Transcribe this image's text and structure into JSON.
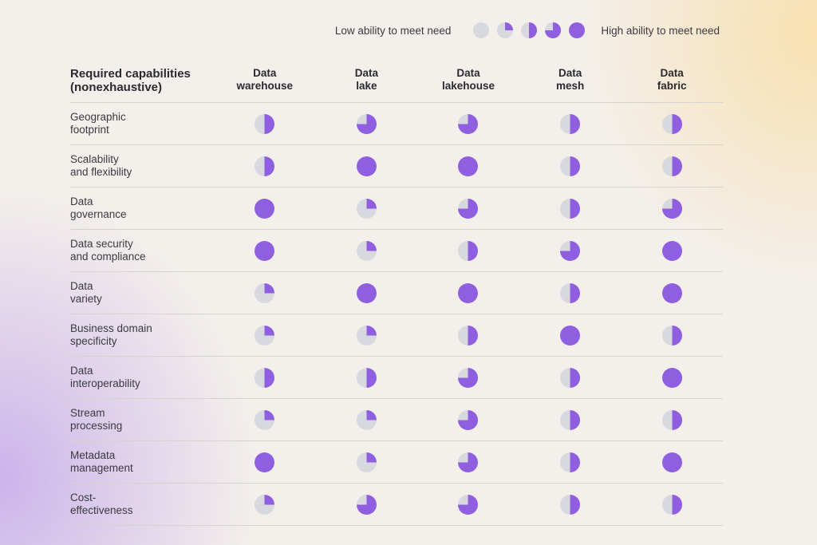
{
  "legend": {
    "low_label": "Low ability to meet need",
    "high_label": "High ability to meet need",
    "levels": [
      0,
      0.25,
      0.5,
      0.75,
      1
    ]
  },
  "colors": {
    "fill": "#8f5fe0",
    "empty": "#d8d9df",
    "rule": "#d6d2ce"
  },
  "chart_data": {
    "type": "table",
    "encoding": "harvey-ball (fraction filled, 0 = low, 1 = high)",
    "row_header": "Required capabilities\n(nonexhaustive)",
    "columns": [
      "Data\nwarehouse",
      "Data\nlake",
      "Data\nlakehouse",
      "Data\nmesh",
      "Data\nfabric"
    ],
    "rows": [
      {
        "label": "Geographic\nfootprint",
        "values": [
          0.5,
          0.75,
          0.75,
          0.5,
          0.5
        ]
      },
      {
        "label": "Scalability\nand flexibility",
        "values": [
          0.5,
          1,
          1,
          0.5,
          0.5
        ]
      },
      {
        "label": "Data\ngovernance",
        "values": [
          1,
          0.25,
          0.75,
          0.5,
          0.75
        ]
      },
      {
        "label": "Data security\nand compliance",
        "values": [
          1,
          0.25,
          0.5,
          0.75,
          1
        ]
      },
      {
        "label": "Data\nvariety",
        "values": [
          0.25,
          1,
          1,
          0.5,
          1
        ]
      },
      {
        "label": "Business domain\nspecificity",
        "values": [
          0.25,
          0.25,
          0.5,
          1,
          0.5
        ]
      },
      {
        "label": "Data\ninteroperability",
        "values": [
          0.5,
          0.5,
          0.75,
          0.5,
          1
        ]
      },
      {
        "label": "Stream\nprocessing",
        "values": [
          0.25,
          0.25,
          0.75,
          0.5,
          0.5
        ]
      },
      {
        "label": "Metadata\nmanagement",
        "values": [
          1,
          0.25,
          0.75,
          0.5,
          1
        ]
      },
      {
        "label": "Cost-\neffectiveness",
        "values": [
          0.25,
          0.75,
          0.75,
          0.5,
          0.5
        ]
      }
    ]
  }
}
